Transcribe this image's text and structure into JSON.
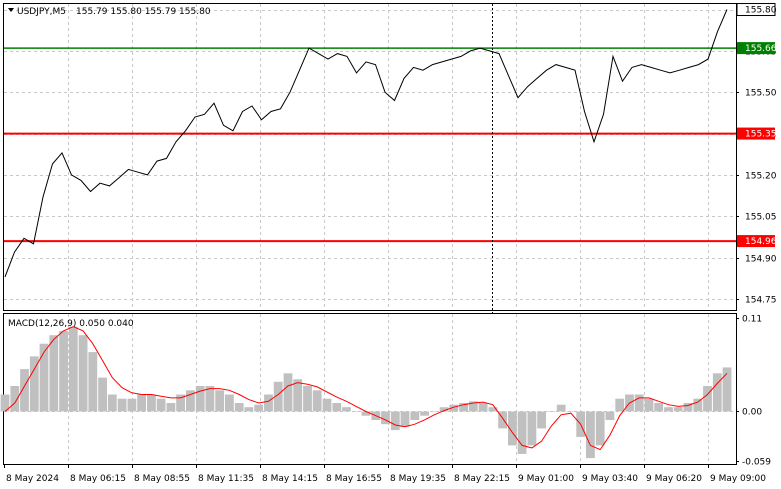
{
  "header": {
    "symbol": "USDJPY,M5",
    "ohlc": "155.79 155.80 155.79 155.80"
  },
  "macd_label": "MACD(12,26,9) 0.050 0.040",
  "colors": {
    "price_line": "#000000",
    "support_line": "#ff0000",
    "resistance_line": "#008000",
    "macd_histogram": "#c0c0c0",
    "macd_signal": "#ff0000",
    "grid": "#c8c8c8",
    "current_price_box": "#ffffff"
  },
  "levels": [
    {
      "value": 155.66,
      "label": "155.66",
      "color": "#008000"
    },
    {
      "value": 155.35,
      "label": "155.35",
      "color": "#ff0000"
    },
    {
      "value": 154.96,
      "label": "154.96",
      "color": "#ff0000"
    }
  ],
  "current_price": {
    "value": 155.8,
    "label": "155.80"
  },
  "chart_data": [
    {
      "type": "line",
      "title": "USDJPY,M5",
      "yticks": [
        "155.80",
        "155.65",
        "155.50",
        "155.35",
        "155.20",
        "155.05",
        "154.90",
        "154.75"
      ],
      "ylim": [
        154.71,
        155.82
      ],
      "xlabels": [
        "8 May 2024",
        "8 May 06:15",
        "8 May 08:55",
        "8 May 11:35",
        "8 May 14:15",
        "8 May 16:55",
        "8 May 19:35",
        "8 May 22:15",
        "9 May 01:00",
        "9 May 03:40",
        "9 May 06:20",
        "9 May 09:00"
      ],
      "series": [
        {
          "values": [
            154.83,
            154.92,
            154.97,
            154.95,
            155.12,
            155.24,
            155.28,
            155.2,
            155.18,
            155.14,
            155.17,
            155.16,
            155.19,
            155.22,
            155.21,
            155.2,
            155.25,
            155.26,
            155.32,
            155.36,
            155.41,
            155.42,
            155.46,
            155.38,
            155.36,
            155.43,
            155.45,
            155.4,
            155.43,
            155.44,
            155.5,
            155.58,
            155.66,
            155.64,
            155.62,
            155.64,
            155.63,
            155.57,
            155.61,
            155.6,
            155.5,
            155.47,
            155.55,
            155.59,
            155.58,
            155.6,
            155.61,
            155.62,
            155.63,
            155.65,
            155.66,
            155.65,
            155.64,
            155.56,
            155.48,
            155.52,
            155.55,
            155.58,
            155.6,
            155.59,
            155.58,
            155.43,
            155.32,
            155.42,
            155.63,
            155.54,
            155.59,
            155.6,
            155.59,
            155.58,
            155.57,
            155.58,
            155.59,
            155.6,
            155.62,
            155.72,
            155.8
          ]
        }
      ]
    },
    {
      "type": "bar",
      "title": "MACD(12,26,9) 0.050 0.040",
      "yticks": [
        "0.11",
        "0.00",
        "-0.059"
      ],
      "ylim": [
        -0.062,
        0.115
      ],
      "series": [
        {
          "values": [
            0.02,
            0.03,
            0.05,
            0.065,
            0.08,
            0.09,
            0.095,
            0.1,
            0.09,
            0.07,
            0.04,
            0.02,
            0.015,
            0.015,
            0.02,
            0.02,
            0.015,
            0.01,
            0.02,
            0.025,
            0.03,
            0.03,
            0.025,
            0.02,
            0.01,
            0.005,
            0.008,
            0.02,
            0.035,
            0.045,
            0.038,
            0.03,
            0.025,
            0.015,
            0.01,
            0.005,
            0.0,
            -0.005,
            -0.01,
            -0.015,
            -0.022,
            -0.018,
            -0.01,
            -0.005,
            0.0,
            0.005,
            0.008,
            0.01,
            0.012,
            0.01,
            0.005,
            -0.02,
            -0.04,
            -0.05,
            -0.04,
            -0.02,
            0.0,
            0.008,
            0.0,
            -0.03,
            -0.055,
            -0.04,
            -0.01,
            0.015,
            0.02,
            0.02,
            0.015,
            0.01,
            0.005,
            0.005,
            0.01,
            0.015,
            0.03,
            0.045,
            0.052
          ]
        },
        {
          "values": [
            0.0,
            0.01,
            0.03,
            0.05,
            0.07,
            0.085,
            0.095,
            0.1,
            0.095,
            0.08,
            0.06,
            0.04,
            0.028,
            0.022,
            0.02,
            0.02,
            0.018,
            0.016,
            0.016,
            0.02,
            0.024,
            0.027,
            0.027,
            0.025,
            0.02,
            0.014,
            0.01,
            0.012,
            0.02,
            0.03,
            0.034,
            0.032,
            0.029,
            0.023,
            0.017,
            0.012,
            0.006,
            0.0,
            -0.005,
            -0.01,
            -0.016,
            -0.018,
            -0.015,
            -0.01,
            -0.004,
            0.001,
            0.005,
            0.008,
            0.01,
            0.011,
            0.008,
            -0.008,
            -0.025,
            -0.04,
            -0.043,
            -0.035,
            -0.017,
            -0.004,
            -0.002,
            -0.015,
            -0.04,
            -0.045,
            -0.028,
            -0.005,
            0.01,
            0.016,
            0.016,
            0.012,
            0.008,
            0.006,
            0.007,
            0.011,
            0.02,
            0.033,
            0.045
          ]
        }
      ]
    }
  ]
}
